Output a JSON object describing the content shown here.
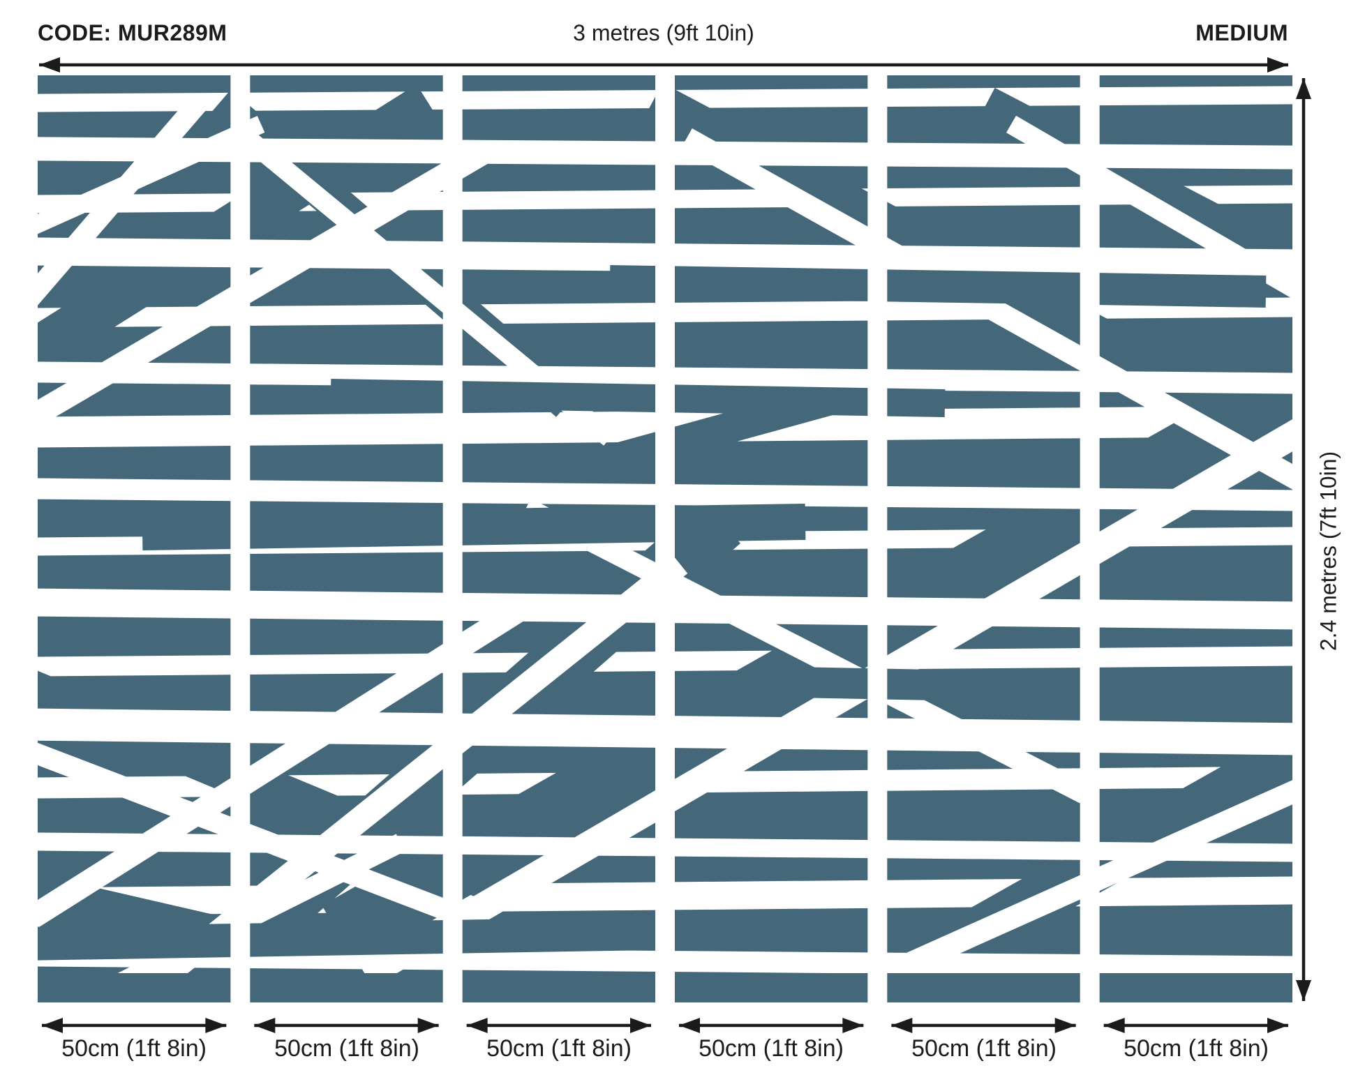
{
  "header": {
    "code": "CODE: MUR289M",
    "total_width_label": "3 metres (9ft 10in)",
    "size_badge": "MEDIUM"
  },
  "side": {
    "total_height_label": "2.4 metres (7ft 10in)"
  },
  "panels": [
    {
      "width_label": "50cm (1ft 8in)"
    },
    {
      "width_label": "50cm (1ft 8in)"
    },
    {
      "width_label": "50cm (1ft 8in)"
    },
    {
      "width_label": "50cm (1ft 8in)"
    },
    {
      "width_label": "50cm (1ft 8in)"
    },
    {
      "width_label": "50cm (1ft 8in)"
    }
  ],
  "colors": {
    "pattern_teal": "#44687A",
    "background": "#FFFFFF",
    "ink": "#1B1B1B"
  }
}
